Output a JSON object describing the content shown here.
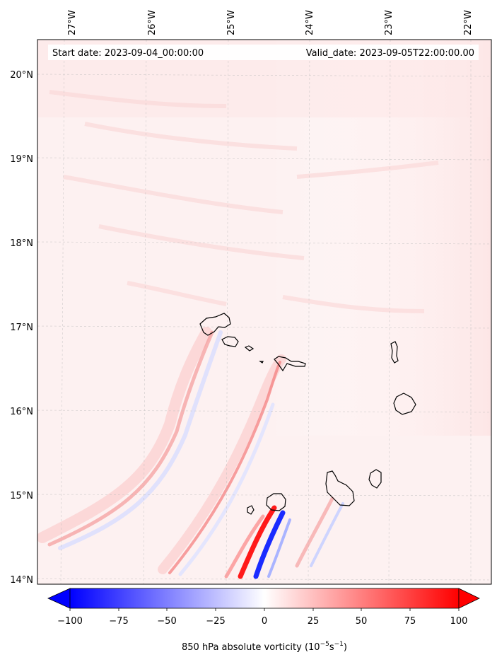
{
  "map": {
    "start_label": "Start date: 2023-09-04_00:00:00",
    "valid_label": "Valid_date: 2023-09-05T22:00:00.00",
    "lon_labels": [
      "27°W",
      "26°W",
      "25°W",
      "24°W",
      "23°W",
      "22°W"
    ],
    "lat_labels": [
      "20°N",
      "19°N",
      "18°N",
      "17°N",
      "16°N",
      "15°N",
      "14°N"
    ],
    "islands": [
      "Santo Antão",
      "São Vicente",
      "Santa Luzia",
      "Branco",
      "Raso",
      "São Nicolau",
      "Sal",
      "Boa Vista",
      "Maio",
      "Santiago",
      "Fogo",
      "Brava"
    ],
    "colors": {
      "background_tint": "#fdf0f0",
      "positive": "#ff0000",
      "negative": "#0000ff",
      "coast": "#000000",
      "grid": "#bbbbbb"
    }
  },
  "colorbar": {
    "ticks": [
      "−100",
      "−75",
      "−50",
      "−25",
      "0",
      "25",
      "50",
      "75",
      "100"
    ],
    "label_main": "850 hPa absolute vorticity (10",
    "label_exp1": "−5",
    "label_mid": "s",
    "label_exp2": "−1",
    "label_close": ")",
    "min": -100,
    "max": 100
  }
}
